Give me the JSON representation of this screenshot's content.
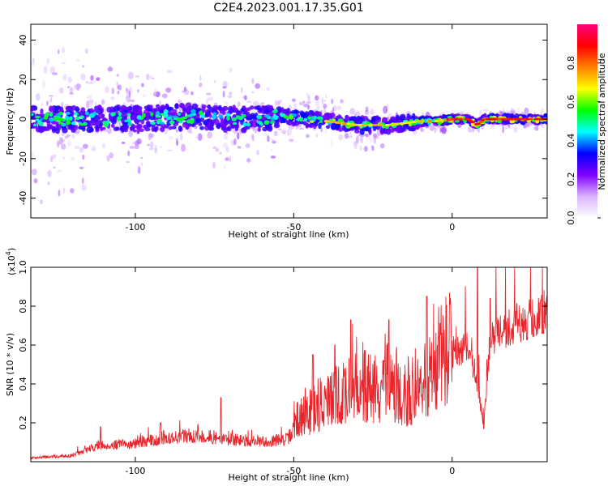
{
  "figure": {
    "title": "C2E4.2023.001.17.35.G01"
  },
  "chart_data": [
    {
      "type": "heatmap",
      "title": "C2E4.2023.001.17.35.G01",
      "xlabel": "Height of straight line (km)",
      "ylabel": "Frequency (Hz)",
      "xlim": [
        -133,
        30
      ],
      "ylim": [
        -50,
        48
      ],
      "xticks": [
        -100,
        -50,
        0
      ],
      "yticks": [
        -40,
        -20,
        0,
        20,
        40
      ],
      "colorbar": {
        "label": "Normalized spectral amplitude",
        "range": [
          0,
          1
        ],
        "ticks": [
          0.0,
          0.2,
          0.4,
          0.6,
          0.8
        ],
        "colormap": [
          "#ffffff",
          "#d9b3ff",
          "#8000ff",
          "#0000ff",
          "#00ffff",
          "#00ff00",
          "#ffff00",
          "#ff8000",
          "#ff0000",
          "#ff0080"
        ]
      },
      "ridge": [
        {
          "x": -130,
          "y": 0
        },
        {
          "x": -120,
          "y": 0
        },
        {
          "x": -110,
          "y": 0
        },
        {
          "x": -100,
          "y": 0
        },
        {
          "x": -90,
          "y": 1
        },
        {
          "x": -80,
          "y": 1
        },
        {
          "x": -70,
          "y": 0
        },
        {
          "x": -60,
          "y": 0
        },
        {
          "x": -55,
          "y": 2
        },
        {
          "x": -45,
          "y": 0
        },
        {
          "x": -40,
          "y": -1
        },
        {
          "x": -35,
          "y": -2
        },
        {
          "x": -30,
          "y": -3
        },
        {
          "x": -25,
          "y": -3
        },
        {
          "x": -20,
          "y": -3
        },
        {
          "x": -15,
          "y": -2
        },
        {
          "x": -10,
          "y": -1
        },
        {
          "x": -5,
          "y": -1
        },
        {
          "x": 0,
          "y": 0
        },
        {
          "x": 5,
          "y": 0
        },
        {
          "x": 8,
          "y": -3
        },
        {
          "x": 10,
          "y": 0
        },
        {
          "x": 15,
          "y": 0
        },
        {
          "x": 20,
          "y": 0
        },
        {
          "x": 25,
          "y": 0
        },
        {
          "x": 30,
          "y": 0
        }
      ]
    },
    {
      "type": "line",
      "xlabel": "Height of straight line (km)",
      "ylabel": "SNR (10 * v/v)",
      "y_multiplier": "(x10",
      "y_multiplier_exp": "4",
      "y_multiplier_close": ")",
      "xlim": [
        -133,
        30
      ],
      "ylim": [
        0,
        1.0
      ],
      "xticks": [
        -100,
        -50,
        0
      ],
      "yticks": [
        0.2,
        0.4,
        0.6,
        0.8,
        1.0
      ],
      "line_color": "#e8252b",
      "envelope": [
        {
          "x": -133,
          "y": 0.02
        },
        {
          "x": -120,
          "y": 0.03
        },
        {
          "x": -112,
          "y": 0.08
        },
        {
          "x": -100,
          "y": 0.09
        },
        {
          "x": -90,
          "y": 0.12
        },
        {
          "x": -80,
          "y": 0.13
        },
        {
          "x": -70,
          "y": 0.11
        },
        {
          "x": -60,
          "y": 0.1
        },
        {
          "x": -52,
          "y": 0.11
        },
        {
          "x": -48,
          "y": 0.22
        },
        {
          "x": -40,
          "y": 0.3
        },
        {
          "x": -35,
          "y": 0.32
        },
        {
          "x": -30,
          "y": 0.4
        },
        {
          "x": -25,
          "y": 0.34
        },
        {
          "x": -20,
          "y": 0.38
        },
        {
          "x": -15,
          "y": 0.32
        },
        {
          "x": -10,
          "y": 0.36
        },
        {
          "x": -5,
          "y": 0.48
        },
        {
          "x": 0,
          "y": 0.55
        },
        {
          "x": 5,
          "y": 0.58
        },
        {
          "x": 8,
          "y": 0.4
        },
        {
          "x": 10,
          "y": 0.18
        },
        {
          "x": 12,
          "y": 0.62
        },
        {
          "x": 18,
          "y": 0.68
        },
        {
          "x": 25,
          "y": 0.72
        },
        {
          "x": 30,
          "y": 0.76
        }
      ],
      "peaks": [
        {
          "x": -111,
          "y": 0.18
        },
        {
          "x": -92,
          "y": 0.2
        },
        {
          "x": -73,
          "y": 0.33
        },
        {
          "x": -44,
          "y": 0.55
        },
        {
          "x": -37,
          "y": 0.6
        },
        {
          "x": -32,
          "y": 0.73
        },
        {
          "x": -20,
          "y": 0.73
        },
        {
          "x": -8,
          "y": 0.85
        },
        {
          "x": 8,
          "y": 1.0
        },
        {
          "x": 12,
          "y": 0.84
        },
        {
          "x": 28,
          "y": 0.83
        }
      ]
    }
  ]
}
